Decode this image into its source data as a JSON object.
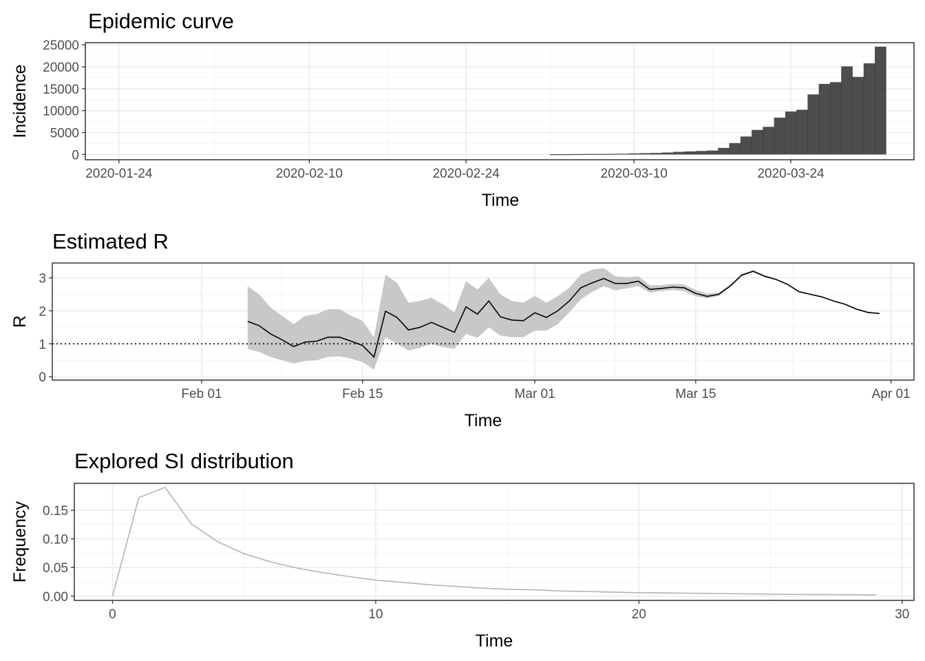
{
  "chart_data": [
    {
      "type": "bar",
      "title": "Epidemic curve",
      "xlabel": "Time",
      "ylabel": "Incidence",
      "x_tick_labels": [
        "2020-01-24",
        "2020-02-10",
        "2020-02-24",
        "2020-03-10",
        "2020-03-24"
      ],
      "y_ticks": [
        0,
        5000,
        10000,
        15000,
        20000,
        25000
      ],
      "ylim": [
        -1200,
        25500
      ],
      "xlim": [
        "2020-01-21",
        "2020-04-04"
      ],
      "grid": true,
      "categories": [
        "2020-03-03",
        "2020-03-04",
        "2020-03-05",
        "2020-03-06",
        "2020-03-07",
        "2020-03-08",
        "2020-03-09",
        "2020-03-10",
        "2020-03-11",
        "2020-03-12",
        "2020-03-13",
        "2020-03-14",
        "2020-03-15",
        "2020-03-16",
        "2020-03-17",
        "2020-03-18",
        "2020-03-19",
        "2020-03-20",
        "2020-03-21",
        "2020-03-22",
        "2020-03-23",
        "2020-03-24",
        "2020-03-25",
        "2020-03-26",
        "2020-03-27",
        "2020-03-28",
        "2020-03-29",
        "2020-03-30",
        "2020-03-31",
        "2020-04-01"
      ],
      "values": [
        50,
        60,
        80,
        100,
        120,
        140,
        180,
        250,
        300,
        350,
        450,
        600,
        700,
        800,
        900,
        1500,
        2600,
        4100,
        5600,
        6300,
        8400,
        9800,
        10200,
        13700,
        16100,
        16500,
        20100,
        17700,
        20800,
        24600
      ]
    },
    {
      "type": "line",
      "title": "Estimated R",
      "xlabel": "Time",
      "ylabel": "R",
      "x_tick_labels": [
        "Feb 01",
        "Feb 15",
        "Mar 01",
        "Mar 15",
        "Apr 01"
      ],
      "y_ticks": [
        0,
        1,
        2,
        3
      ],
      "ylim": [
        -0.1,
        3.45
      ],
      "xlim": [
        "2020-01-19",
        "2020-04-03"
      ],
      "reference_line": 1,
      "grid": true,
      "x": [
        "2020-02-05",
        "2020-02-06",
        "2020-02-07",
        "2020-02-08",
        "2020-02-09",
        "2020-02-10",
        "2020-02-11",
        "2020-02-12",
        "2020-02-13",
        "2020-02-14",
        "2020-02-15",
        "2020-02-16",
        "2020-02-17",
        "2020-02-18",
        "2020-02-19",
        "2020-02-20",
        "2020-02-21",
        "2020-02-22",
        "2020-02-23",
        "2020-02-24",
        "2020-02-25",
        "2020-02-26",
        "2020-02-27",
        "2020-02-28",
        "2020-02-29",
        "2020-03-01",
        "2020-03-02",
        "2020-03-03",
        "2020-03-04",
        "2020-03-05",
        "2020-03-06",
        "2020-03-07",
        "2020-03-08",
        "2020-03-09",
        "2020-03-10",
        "2020-03-11",
        "2020-03-12",
        "2020-03-13",
        "2020-03-14",
        "2020-03-15",
        "2020-03-16",
        "2020-03-17",
        "2020-03-18",
        "2020-03-19",
        "2020-03-20",
        "2020-03-21",
        "2020-03-22",
        "2020-03-23",
        "2020-03-24",
        "2020-03-25",
        "2020-03-26",
        "2020-03-27",
        "2020-03-28",
        "2020-03-29",
        "2020-03-30",
        "2020-03-31"
      ],
      "series": [
        {
          "mean": [
            1.68,
            1.55,
            1.3,
            1.12,
            0.92,
            1.05,
            1.08,
            1.2,
            1.2,
            1.08,
            0.95,
            0.6,
            1.99,
            1.8,
            1.42,
            1.5,
            1.65,
            1.5,
            1.35,
            2.12,
            1.9,
            2.3,
            1.82,
            1.72,
            1.7,
            1.94,
            1.8,
            2.0,
            2.3,
            2.7,
            2.85,
            2.98,
            2.83,
            2.83,
            2.9,
            2.65,
            2.68,
            2.72,
            2.7,
            2.53,
            2.44,
            2.5,
            2.75,
            3.08,
            3.2,
            3.05,
            2.95,
            2.8,
            2.58,
            2.5,
            2.42,
            2.3,
            2.2,
            2.05,
            1.95,
            1.92
          ],
          "lower": [
            0.85,
            0.75,
            0.6,
            0.5,
            0.4,
            0.48,
            0.5,
            0.6,
            0.62,
            0.55,
            0.45,
            0.22,
            1.2,
            1.0,
            0.8,
            0.88,
            1.0,
            0.9,
            0.85,
            1.3,
            1.18,
            1.5,
            1.25,
            1.2,
            1.2,
            1.4,
            1.4,
            1.6,
            1.95,
            2.35,
            2.58,
            2.75,
            2.62,
            2.68,
            2.75,
            2.55,
            2.6,
            2.63,
            2.6,
            2.44,
            2.38,
            2.45,
            2.72,
            3.05,
            3.17,
            3.02,
            2.93,
            2.78,
            2.56,
            2.48,
            2.4,
            2.28,
            2.18,
            2.03,
            1.93,
            1.9
          ],
          "upper": [
            2.75,
            2.5,
            2.1,
            1.85,
            1.6,
            1.85,
            1.9,
            2.05,
            2.05,
            1.85,
            1.7,
            1.2,
            3.1,
            2.85,
            2.25,
            2.3,
            2.4,
            2.2,
            1.95,
            2.9,
            2.65,
            3.0,
            2.5,
            2.3,
            2.25,
            2.45,
            2.25,
            2.45,
            2.7,
            3.1,
            3.25,
            3.3,
            3.05,
            3.02,
            3.05,
            2.78,
            2.78,
            2.82,
            2.8,
            2.63,
            2.52,
            2.56,
            2.79,
            3.12,
            3.24,
            3.08,
            2.97,
            2.82,
            2.6,
            2.52,
            2.44,
            2.32,
            2.22,
            2.07,
            1.97,
            1.94
          ]
        }
      ]
    },
    {
      "type": "line",
      "title": "Explored SI distribution",
      "xlabel": "Time",
      "ylabel": "Frequency",
      "x_ticks": [
        0,
        10,
        20,
        30
      ],
      "y_ticks": [
        0.0,
        0.05,
        0.1,
        0.15
      ],
      "y_tick_labels": [
        "0.00",
        "0.05",
        "0.10",
        "0.15"
      ],
      "xlim": [
        -1.45,
        30.45
      ],
      "ylim": [
        -0.0075,
        0.197
      ],
      "grid": true,
      "x": [
        0,
        1,
        2,
        3,
        4,
        5,
        6,
        7,
        8,
        9,
        10,
        11,
        12,
        13,
        14,
        15,
        16,
        17,
        18,
        19,
        20,
        21,
        22,
        23,
        24,
        25,
        26,
        27,
        28,
        29
      ],
      "series": [
        {
          "values": [
            0.0,
            0.172,
            0.19,
            0.126,
            0.095,
            0.074,
            0.06,
            0.049,
            0.041,
            0.034,
            0.028,
            0.024,
            0.02,
            0.017,
            0.014,
            0.012,
            0.011,
            0.009,
            0.008,
            0.007,
            0.006,
            0.0055,
            0.005,
            0.0045,
            0.004,
            0.0035,
            0.003,
            0.0028,
            0.0025,
            0.0022
          ]
        }
      ]
    }
  ]
}
